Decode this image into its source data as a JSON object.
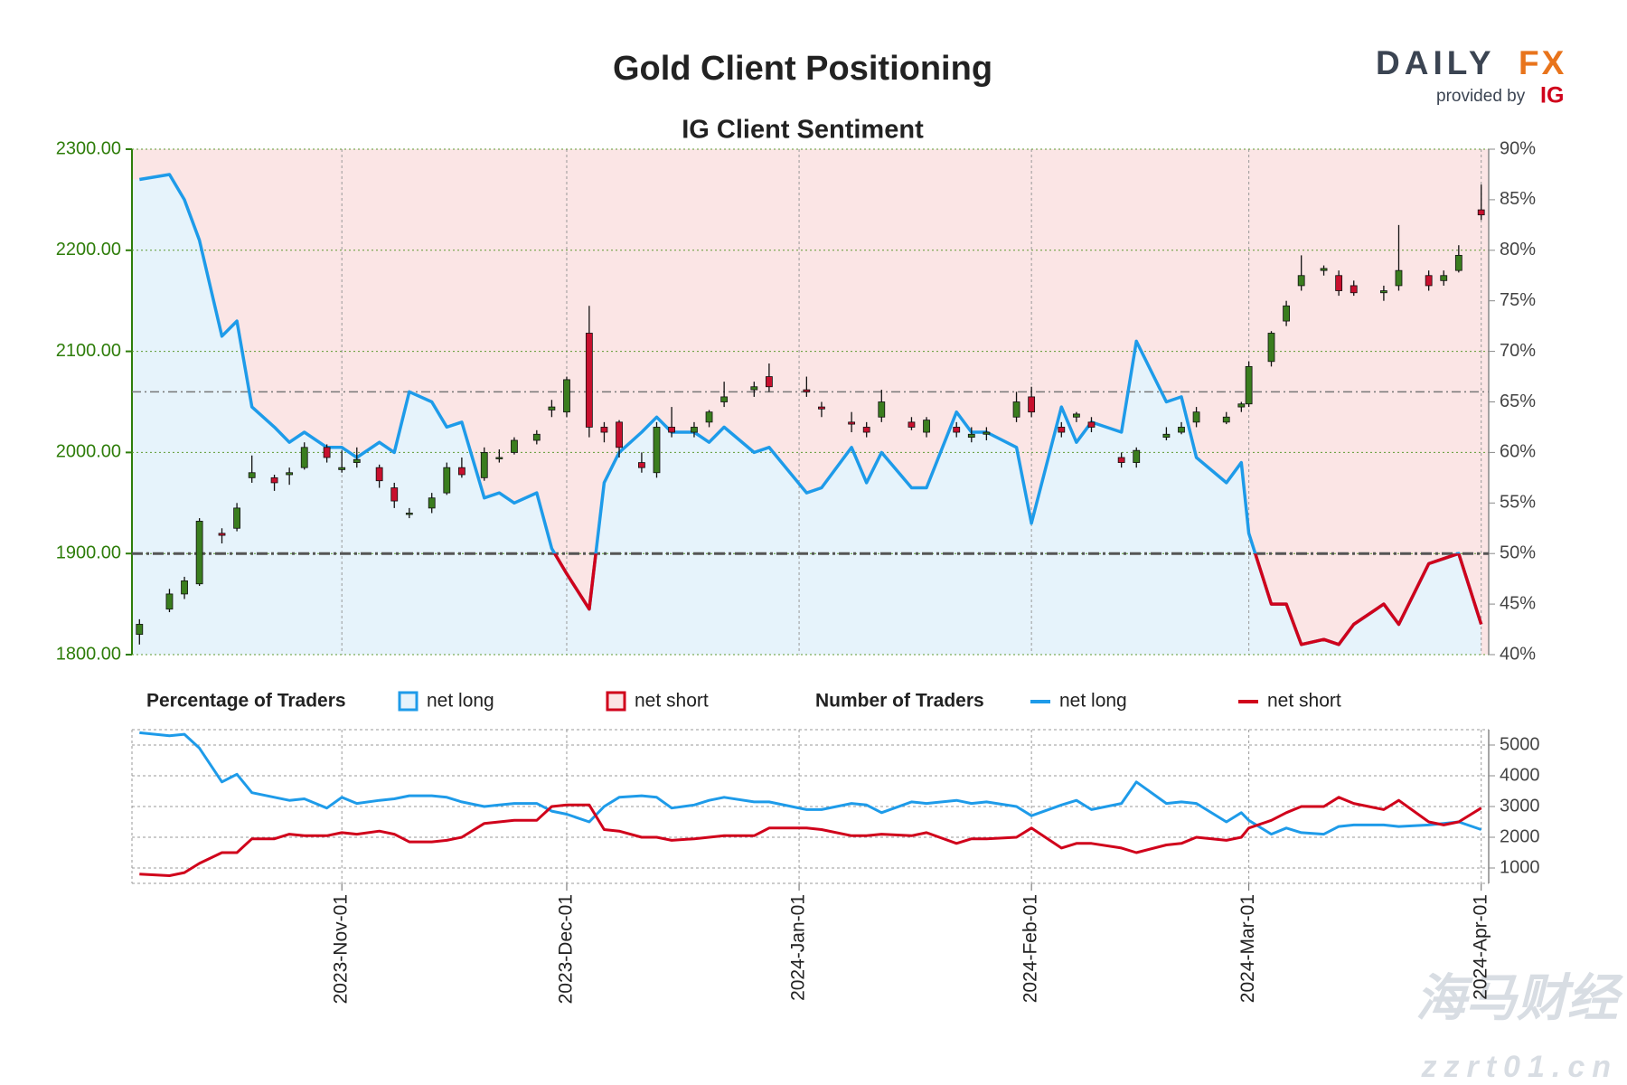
{
  "header": {
    "logo_left": "DAILY",
    "logo_right": "FX",
    "provided_by": "provided by",
    "provider": "IG"
  },
  "watermark": {
    "name": "海马财经",
    "url": "zzrt01.cn"
  },
  "chart_data": [
    {
      "type": "candlestick",
      "title": "Gold Client Positioning",
      "subtitle": "IG Client Sentiment",
      "x": [
        "2023-10-05",
        "2023-10-09",
        "2023-10-11",
        "2023-10-13",
        "2023-10-16",
        "2023-10-18",
        "2023-10-20",
        "2023-10-23",
        "2023-10-25",
        "2023-10-27",
        "2023-10-30",
        "2023-11-01",
        "2023-11-03",
        "2023-11-06",
        "2023-11-08",
        "2023-11-10",
        "2023-11-13",
        "2023-11-15",
        "2023-11-17",
        "2023-11-20",
        "2023-11-22",
        "2023-11-24",
        "2023-11-27",
        "2023-11-29",
        "2023-12-01",
        "2023-12-04",
        "2023-12-06",
        "2023-12-08",
        "2023-12-11",
        "2023-12-13",
        "2023-12-15",
        "2023-12-18",
        "2023-12-20",
        "2023-12-22",
        "2023-12-26",
        "2023-12-28",
        "2024-01-02",
        "2024-01-04",
        "2024-01-08",
        "2024-01-10",
        "2024-01-12",
        "2024-01-16",
        "2024-01-18",
        "2024-01-22",
        "2024-01-24",
        "2024-01-26",
        "2024-01-30",
        "2024-02-01",
        "2024-02-05",
        "2024-02-07",
        "2024-02-09",
        "2024-02-13",
        "2024-02-15",
        "2024-02-19",
        "2024-02-21",
        "2024-02-23",
        "2024-02-27",
        "2024-02-29",
        "2024-03-01",
        "2024-03-04",
        "2024-03-06",
        "2024-03-08",
        "2024-03-11",
        "2024-03-13",
        "2024-03-15",
        "2024-03-19",
        "2024-03-21",
        "2024-03-25",
        "2024-03-27",
        "2024-03-29",
        "2024-04-01"
      ],
      "open": [
        1820,
        1845,
        1860,
        1870,
        1920,
        1925,
        1975,
        1975,
        1978,
        1985,
        2005,
        1983,
        1990,
        1985,
        1965,
        1940,
        1945,
        1960,
        1985,
        1975,
        1995,
        2000,
        2012,
        2042,
        2040,
        2118,
        2025,
        2030,
        1990,
        1980,
        2025,
        2020,
        2030,
        2050,
        2062,
        2075,
        2062,
        2045,
        2030,
        2025,
        2035,
        2030,
        2020,
        2025,
        2015,
        2018,
        2035,
        2055,
        2025,
        2035,
        2030,
        1995,
        1990,
        2015,
        2020,
        2030,
        2030,
        2045,
        2048,
        2090,
        2130,
        2165,
        2180,
        2175,
        2165,
        2158,
        2165,
        2175,
        2170,
        2180,
        2240
      ],
      "high": [
        1835,
        1865,
        1877,
        1935,
        1925,
        1950,
        1997,
        1978,
        1985,
        2010,
        2008,
        2002,
        2005,
        1988,
        1970,
        1945,
        1960,
        1990,
        1995,
        2005,
        2003,
        2015,
        2022,
        2052,
        2075,
        2145,
        2030,
        2032,
        2000,
        2030,
        2045,
        2030,
        2042,
        2070,
        2070,
        2088,
        2075,
        2050,
        2040,
        2030,
        2062,
        2035,
        2035,
        2030,
        2025,
        2025,
        2060,
        2065,
        2030,
        2040,
        2035,
        2000,
        2005,
        2025,
        2030,
        2045,
        2040,
        2050,
        2090,
        2120,
        2150,
        2195,
        2185,
        2180,
        2170,
        2165,
        2225,
        2180,
        2180,
        2205,
        2265
      ],
      "low": [
        1810,
        1842,
        1855,
        1868,
        1910,
        1922,
        1970,
        1962,
        1968,
        1983,
        1990,
        1980,
        1985,
        1965,
        1945,
        1935,
        1940,
        1958,
        1975,
        1972,
        1990,
        1998,
        2008,
        2035,
        2035,
        2015,
        2010,
        1995,
        1980,
        1975,
        2015,
        2015,
        2025,
        2045,
        2055,
        2060,
        2055,
        2035,
        2020,
        2015,
        2030,
        2022,
        2015,
        2015,
        2010,
        2012,
        2030,
        2035,
        2015,
        2030,
        2020,
        1985,
        1985,
        2012,
        2018,
        2025,
        2028,
        2040,
        2045,
        2085,
        2125,
        2160,
        2175,
        2155,
        2155,
        2150,
        2160,
        2160,
        2165,
        2178,
        2230
      ],
      "close": [
        1830,
        1860,
        1873,
        1932,
        1918,
        1945,
        1980,
        1970,
        1980,
        2005,
        1995,
        1985,
        1993,
        1972,
        1952,
        1940,
        1955,
        1985,
        1978,
        2000,
        1995,
        2012,
        2018,
        2045,
        2072,
        2025,
        2020,
        2005,
        1985,
        2025,
        2020,
        2025,
        2040,
        2055,
        2065,
        2065,
        2060,
        2043,
        2028,
        2020,
        2050,
        2025,
        2032,
        2020,
        2018,
        2020,
        2050,
        2040,
        2020,
        2038,
        2025,
        1990,
        2002,
        2018,
        2025,
        2040,
        2035,
        2048,
        2085,
        2118,
        2145,
        2175,
        2182,
        2160,
        2158,
        2160,
        2180,
        2165,
        2175,
        2195,
        2235
      ],
      "up_color": "#3a7d1e",
      "down_color": "#c8102e",
      "axis_color": "#2e7d0a",
      "sentiment": {
        "axis": "y2",
        "values": [
          87,
          87.5,
          85,
          81,
          71.5,
          73,
          64.5,
          62.5,
          61,
          62,
          60.5,
          60.5,
          59.5,
          61,
          60,
          66,
          65,
          62.5,
          63,
          55.5,
          56,
          55,
          56,
          50.5,
          48,
          44.5,
          57,
          60,
          62,
          63.5,
          62,
          62,
          61,
          62.5,
          60,
          60.5,
          56,
          56.5,
          60.5,
          57,
          60,
          56.5,
          56.5,
          64,
          62,
          62,
          60.5,
          53,
          64.5,
          61,
          63,
          62,
          71,
          65,
          65.5,
          59.5,
          57,
          59,
          52,
          45,
          45,
          41,
          41.5,
          41,
          43,
          45,
          43,
          49,
          49.5,
          50,
          43
        ]
      },
      "midline": 50,
      "price_line": 2060,
      "legend": {
        "title": "Percentage of Traders",
        "items": [
          {
            "name": "net long",
            "color": "#1e9be9",
            "fill": "#e6f3fb"
          },
          {
            "name": "net short",
            "color": "#d0021b",
            "fill": "#fbe5e5"
          }
        ]
      },
      "xlim": [
        "2023-10-04",
        "2024-04-02"
      ],
      "xticks": [
        {
          "value": "2023-11-01",
          "label": "2023-Nov-01"
        },
        {
          "value": "2023-12-01",
          "label": "2023-Dec-01"
        },
        {
          "value": "2024-01-01",
          "label": "2024-Jan-01"
        },
        {
          "value": "2024-02-01",
          "label": "2024-Feb-01"
        },
        {
          "value": "2024-03-01",
          "label": "2024-Mar-01"
        },
        {
          "value": "2024-04-01",
          "label": "2024-Apr-01"
        }
      ],
      "ylim": [
        1800,
        2300
      ],
      "yticks": [
        {
          "value": 1800,
          "label": "1800.00"
        },
        {
          "value": 1900,
          "label": "1900.00"
        },
        {
          "value": 2000,
          "label": "2000.00"
        },
        {
          "value": 2100,
          "label": "2100.00"
        },
        {
          "value": 2200,
          "label": "2200.00"
        },
        {
          "value": 2300,
          "label": "2300.00"
        }
      ],
      "y2lim": [
        40,
        90
      ],
      "y2ticks": [
        {
          "value": 40,
          "label": "40%"
        },
        {
          "value": 45,
          "label": "45%"
        },
        {
          "value": 50,
          "label": "50%"
        },
        {
          "value": 55,
          "label": "55%"
        },
        {
          "value": 60,
          "label": "60%"
        },
        {
          "value": 65,
          "label": "65%"
        },
        {
          "value": 70,
          "label": "70%"
        },
        {
          "value": 75,
          "label": "75%"
        },
        {
          "value": 80,
          "label": "80%"
        },
        {
          "value": 85,
          "label": "85%"
        },
        {
          "value": 90,
          "label": "90%"
        }
      ],
      "grid": true
    },
    {
      "type": "line",
      "legend_title": "Number of Traders",
      "series": [
        {
          "name": "net long",
          "color": "#1e9be9",
          "values": [
            5400,
            5300,
            5350,
            4900,
            3800,
            4050,
            3450,
            3300,
            3200,
            3250,
            2950,
            3300,
            3100,
            3200,
            3250,
            3350,
            3350,
            3300,
            3150,
            3000,
            3050,
            3100,
            3100,
            2850,
            2750,
            2500,
            3000,
            3300,
            3350,
            3300,
            2950,
            3050,
            3200,
            3300,
            3150,
            3150,
            2900,
            2900,
            3100,
            3050,
            2800,
            3150,
            3100,
            3200,
            3100,
            3150,
            3000,
            2700,
            3050,
            3200,
            2900,
            3100,
            3800,
            3100,
            3150,
            3100,
            2500,
            2800,
            2550,
            2100,
            2300,
            2150,
            2100,
            2350,
            2400,
            2400,
            2350,
            2400,
            2450,
            2500,
            2250
          ]
        },
        {
          "name": "net short",
          "color": "#d0021b",
          "values": [
            800,
            750,
            850,
            1150,
            1500,
            1500,
            1950,
            1950,
            2100,
            2050,
            2050,
            2150,
            2100,
            2200,
            2100,
            1850,
            1850,
            1900,
            2000,
            2450,
            2500,
            2550,
            2550,
            3000,
            3050,
            3050,
            2250,
            2200,
            2000,
            2000,
            1900,
            1950,
            2000,
            2050,
            2050,
            2300,
            2300,
            2250,
            2050,
            2050,
            2100,
            2050,
            2150,
            1800,
            1950,
            1950,
            2000,
            2300,
            1650,
            1800,
            1800,
            1650,
            1500,
            1750,
            1800,
            2000,
            1900,
            2000,
            2300,
            2550,
            2800,
            3000,
            3000,
            3300,
            3100,
            2900,
            3200,
            2500,
            2400,
            2500,
            2950
          ]
        }
      ],
      "ylim": [
        500,
        5500
      ],
      "yticks": [
        1000,
        2000,
        3000,
        4000,
        5000
      ],
      "grid": true
    }
  ]
}
